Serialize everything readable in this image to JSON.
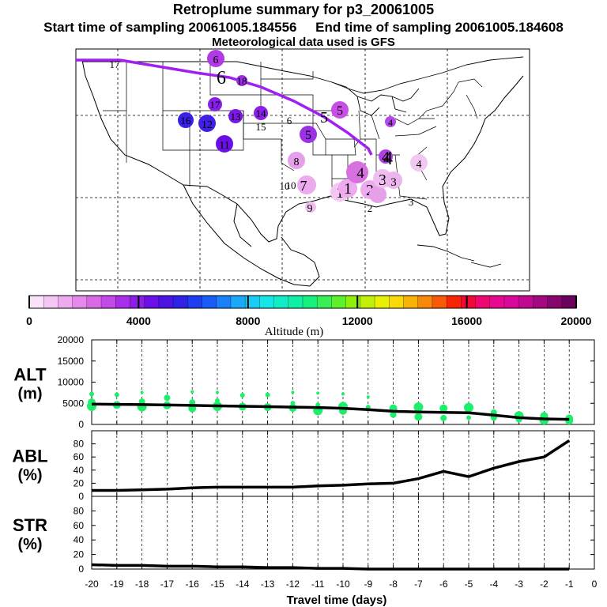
{
  "header": {
    "title": "Retroplume summary for p3_20061005",
    "start_label": "Start time of sampling 20061005.184556",
    "end_label": "End time of sampling 20061005.184608",
    "met_label": "Meteorological data used is GFS"
  },
  "colorbar": {
    "label": "Altitude (m)",
    "ticks": [
      "0",
      "4000",
      "8000",
      "12000",
      "16000",
      "20000"
    ],
    "range": [
      0,
      20000
    ],
    "colors": [
      "#fbe2fb",
      "#f5c7f5",
      "#eeaaee",
      "#e589ea",
      "#d86ae8",
      "#c34ae8",
      "#a92ee8",
      "#8d1ee8",
      "#6a10e6",
      "#4a14e2",
      "#3022e4",
      "#1f3df0",
      "#1a5cf5",
      "#1a80f8",
      "#1ca8f8",
      "#1acdf2",
      "#17e6e6",
      "#12ecc6",
      "#0ff0a4",
      "#18f080",
      "#38f056",
      "#5ef02a",
      "#8ef00c",
      "#c0f00a",
      "#e8f008",
      "#f8da08",
      "#f8b208",
      "#f88808",
      "#f85a08",
      "#f82408",
      "#f00838",
      "#ec086c",
      "#e60890",
      "#d80898",
      "#c00890",
      "#a20880",
      "#86066c",
      "#6a045a"
    ]
  },
  "map": {
    "trajectory_color": "#a020f0",
    "markers": [
      {
        "label": "1",
        "color": "#f3c6f3"
      },
      {
        "label": "1",
        "color": "#ecb0ec"
      },
      {
        "label": "1",
        "color": "#eeaaee"
      },
      {
        "label": "2",
        "color": "#eeaaee"
      },
      {
        "label": "2",
        "color": "#e6a0e8"
      },
      {
        "label": "3",
        "color": "#f0bff0"
      },
      {
        "label": "3",
        "color": "#eeb4ee"
      },
      {
        "label": "3",
        "color": "#ecaaec"
      },
      {
        "label": "4",
        "color": "#d870e0"
      },
      {
        "label": "4",
        "color": "#b040e6"
      },
      {
        "label": "4",
        "color": "#f0c8f0"
      },
      {
        "label": "4",
        "color": "#b44ae6"
      },
      {
        "label": "5",
        "color": "#c84ee6"
      },
      {
        "label": "5",
        "color": "#9b30e8"
      },
      {
        "label": "6",
        "color": "#b23ae6"
      },
      {
        "label": "7",
        "color": "#eeaaee"
      },
      {
        "label": "8",
        "color": "#e6a0ea"
      },
      {
        "label": "9",
        "color": "#f0c0f0"
      },
      {
        "label": "10",
        "color": "#f0c0f0"
      },
      {
        "label": "11",
        "color": "#6a10e6"
      },
      {
        "label": "12",
        "color": "#4020e6"
      },
      {
        "label": "13",
        "color": "#7a18e6"
      },
      {
        "label": "14",
        "color": "#8a20e8"
      },
      {
        "label": "15",
        "color": "#a030e8"
      },
      {
        "label": "16",
        "color": "#3a20e6"
      },
      {
        "label": "17",
        "color": "#8a20e8"
      },
      {
        "label": "18",
        "color": "#a02ee8"
      }
    ]
  },
  "chart_data": [
    {
      "type": "scatter",
      "title": "ALT (m)",
      "ylabel_top": "ALT",
      "ylabel_bottom": "(m)",
      "ylim": [
        0,
        20000
      ],
      "yticks": [
        "0",
        "5000",
        "10000",
        "15000",
        "20000"
      ],
      "xlim": [
        -20,
        0
      ],
      "line_x": [
        -20,
        -19,
        -18,
        -17,
        -16,
        -15,
        -14,
        -13,
        -12,
        -11,
        -10,
        -9,
        -8,
        -7,
        -6,
        -5,
        -4,
        -3,
        -2,
        -1
      ],
      "line_y": [
        4800,
        4750,
        4700,
        4600,
        4500,
        4400,
        4300,
        4200,
        4100,
        4000,
        3800,
        3500,
        3100,
        2950,
        2850,
        2750,
        2200,
        1600,
        1300,
        1200
      ],
      "points": [
        {
          "x": -20,
          "y": 7200,
          "s": 3
        },
        {
          "x": -20,
          "y": 5200,
          "s": 5
        },
        {
          "x": -20,
          "y": 4300,
          "s": 6
        },
        {
          "x": -19,
          "y": 7000,
          "s": 3
        },
        {
          "x": -19,
          "y": 4600,
          "s": 5
        },
        {
          "x": -18,
          "y": 7600,
          "s": 2
        },
        {
          "x": -18,
          "y": 5400,
          "s": 4
        },
        {
          "x": -18,
          "y": 4200,
          "s": 6
        },
        {
          "x": -17,
          "y": 6300,
          "s": 4
        },
        {
          "x": -17,
          "y": 4500,
          "s": 5
        },
        {
          "x": -16,
          "y": 7700,
          "s": 2
        },
        {
          "x": -16,
          "y": 5200,
          "s": 4
        },
        {
          "x": -16,
          "y": 3800,
          "s": 5
        },
        {
          "x": -15,
          "y": 7600,
          "s": 2
        },
        {
          "x": -15,
          "y": 5600,
          "s": 3
        },
        {
          "x": -15,
          "y": 4300,
          "s": 6
        },
        {
          "x": -14,
          "y": 6900,
          "s": 3
        },
        {
          "x": -14,
          "y": 4200,
          "s": 5
        },
        {
          "x": -13,
          "y": 7000,
          "s": 3
        },
        {
          "x": -13,
          "y": 4100,
          "s": 5
        },
        {
          "x": -12,
          "y": 7600,
          "s": 2
        },
        {
          "x": -12,
          "y": 5000,
          "s": 3
        },
        {
          "x": -12,
          "y": 3900,
          "s": 5
        },
        {
          "x": -11,
          "y": 7400,
          "s": 2
        },
        {
          "x": -11,
          "y": 4600,
          "s": 3
        },
        {
          "x": -11,
          "y": 3300,
          "s": 6
        },
        {
          "x": -10,
          "y": 7200,
          "s": 2
        },
        {
          "x": -10,
          "y": 4200,
          "s": 6
        },
        {
          "x": -10,
          "y": 3200,
          "s": 5
        },
        {
          "x": -9,
          "y": 6500,
          "s": 2
        },
        {
          "x": -9,
          "y": 4100,
          "s": 3
        },
        {
          "x": -8,
          "y": 3800,
          "s": 5
        },
        {
          "x": -8,
          "y": 2300,
          "s": 4
        },
        {
          "x": -7,
          "y": 4100,
          "s": 6
        },
        {
          "x": -7,
          "y": 1800,
          "s": 5
        },
        {
          "x": -6,
          "y": 3800,
          "s": 5
        },
        {
          "x": -6,
          "y": 1500,
          "s": 4
        },
        {
          "x": -5,
          "y": 4000,
          "s": 6
        },
        {
          "x": -5,
          "y": 1600,
          "s": 3
        },
        {
          "x": -4,
          "y": 2800,
          "s": 4
        },
        {
          "x": -4,
          "y": 1600,
          "s": 4
        },
        {
          "x": -3,
          "y": 2000,
          "s": 6
        },
        {
          "x": -3,
          "y": 1200,
          "s": 4
        },
        {
          "x": -2,
          "y": 2000,
          "s": 5
        },
        {
          "x": -2,
          "y": 1100,
          "s": 6
        },
        {
          "x": -1,
          "y": 1400,
          "s": 5
        },
        {
          "x": -1,
          "y": 900,
          "s": 5
        }
      ]
    },
    {
      "type": "line",
      "title": "ABL (%)",
      "ylabel_top": "ABL",
      "ylabel_bottom": "(%)",
      "ylim": [
        0,
        100
      ],
      "yticks": [
        "0",
        "20",
        "40",
        "60",
        "80"
      ],
      "xlim": [
        -20,
        0
      ],
      "x": [
        -20,
        -19,
        -18,
        -17,
        -16,
        -15,
        -14,
        -13,
        -12,
        -11,
        -10,
        -9,
        -8,
        -7,
        -6,
        -5,
        -4,
        -3,
        -2,
        -1
      ],
      "y": [
        9,
        9,
        10,
        11,
        13,
        14,
        14,
        14,
        14,
        16,
        17,
        19,
        20,
        27,
        38,
        30,
        43,
        53,
        60,
        85
      ]
    },
    {
      "type": "line",
      "title": "STR (%)",
      "ylabel_top": "STR",
      "ylabel_bottom": "(%)",
      "ylim": [
        0,
        100
      ],
      "yticks": [
        "0",
        "20",
        "40",
        "60",
        "80"
      ],
      "xlim": [
        -20,
        0
      ],
      "x": [
        -20,
        -19,
        -18,
        -17,
        -16,
        -15,
        -14,
        -13,
        -12,
        -11,
        -10,
        -9,
        -8,
        -7,
        -6,
        -5,
        -4,
        -3,
        -2,
        -1
      ],
      "y": [
        6,
        5,
        5,
        4,
        4,
        3,
        3,
        2,
        2,
        1,
        1,
        0,
        0,
        0,
        0,
        0,
        0,
        0,
        0,
        0
      ],
      "xlabel": "Travel time (days)",
      "xticks": [
        "-20",
        "-19",
        "-18",
        "-17",
        "-16",
        "-15",
        "-14",
        "-13",
        "-12",
        "-11",
        "-10",
        "-9",
        "-8",
        "-7",
        "-6",
        "-5",
        "-4",
        "-3",
        "-2",
        "-1",
        "0"
      ]
    }
  ]
}
